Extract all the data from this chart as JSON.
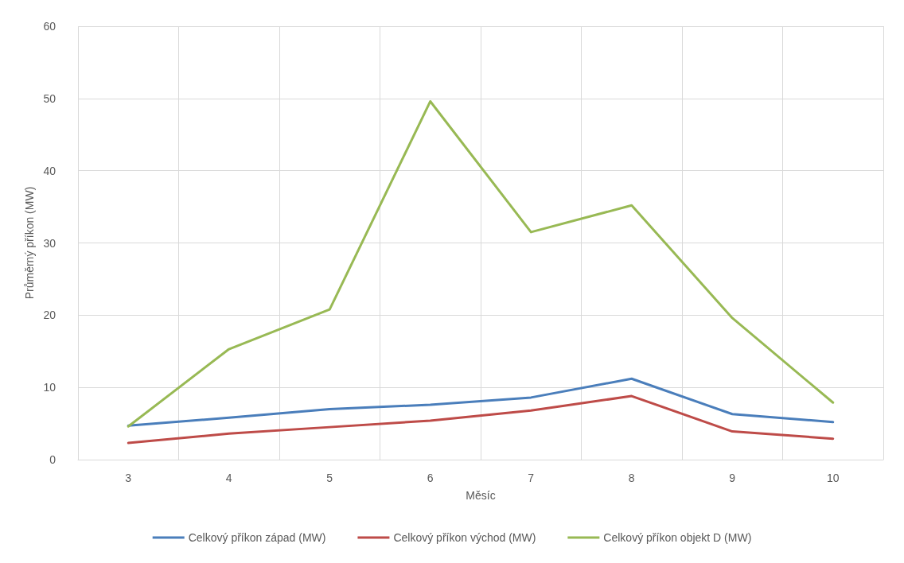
{
  "chart_data": {
    "type": "line",
    "xlabel": "Měsíc",
    "ylabel": "Průměrný příkon (MW)",
    "categories": [
      "3",
      "4",
      "5",
      "6",
      "7",
      "8",
      "9",
      "10"
    ],
    "series": [
      {
        "name": "Celkový příkon západ (MW)",
        "color": "#4a7ebb",
        "values": [
          4.7,
          5.8,
          7.0,
          7.6,
          8.6,
          11.2,
          6.3,
          5.2
        ]
      },
      {
        "name": "Celkový příkon východ (MW)",
        "color": "#be4b48",
        "values": [
          2.3,
          3.6,
          4.5,
          5.4,
          6.8,
          8.8,
          3.9,
          2.9
        ]
      },
      {
        "name": "Celkový příkon objekt D (MW)",
        "color": "#98b954",
        "values": [
          4.6,
          15.3,
          20.8,
          49.6,
          31.5,
          35.2,
          19.6,
          7.9
        ]
      }
    ],
    "ylim": [
      0,
      60
    ],
    "yticks": [
      0,
      10,
      20,
      30,
      40,
      50,
      60
    ],
    "grid": true,
    "legend": "bottom",
    "marker": "none",
    "line_style": "solid"
  }
}
